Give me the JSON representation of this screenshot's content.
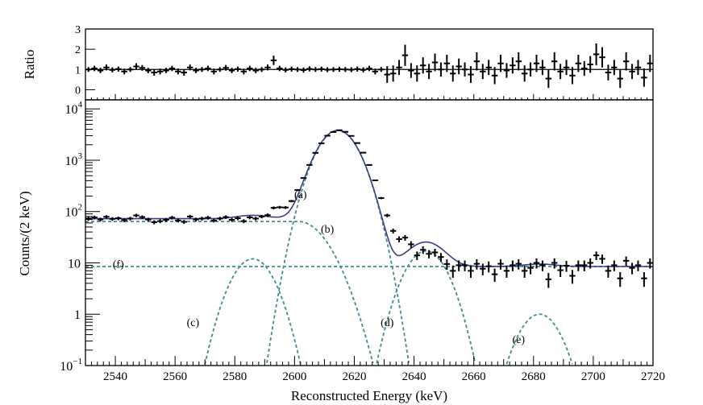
{
  "chart_data": [
    {
      "type": "scatter",
      "panel": "ratio",
      "ylabel": "Ratio",
      "ylim": [
        -0.5,
        3
      ],
      "yticks": [
        "0",
        "1",
        "2",
        "3"
      ],
      "reference_line": 1,
      "x": [
        2531,
        2533,
        2535,
        2537,
        2539,
        2541,
        2543,
        2545,
        2547,
        2549,
        2551,
        2553,
        2555,
        2557,
        2559,
        2561,
        2563,
        2565,
        2567,
        2569,
        2571,
        2573,
        2575,
        2577,
        2579,
        2581,
        2583,
        2585,
        2587,
        2589,
        2591,
        2593,
        2595,
        2597,
        2599,
        2601,
        2603,
        2605,
        2607,
        2609,
        2611,
        2613,
        2615,
        2617,
        2619,
        2621,
        2623,
        2625,
        2627,
        2629,
        2631,
        2633,
        2635,
        2637,
        2639,
        2641,
        2643,
        2645,
        2647,
        2649,
        2651,
        2653,
        2655,
        2657,
        2659,
        2661,
        2663,
        2665,
        2667,
        2669,
        2671,
        2673,
        2675,
        2677,
        2679,
        2681,
        2683,
        2685,
        2687,
        2689,
        2691,
        2693,
        2695,
        2697,
        2699,
        2701,
        2703,
        2705,
        2707,
        2709,
        2711,
        2713,
        2715,
        2717,
        2719
      ],
      "y": [
        1.0,
        1.05,
        0.95,
        1.1,
        0.98,
        1.02,
        0.9,
        1.0,
        1.15,
        1.08,
        0.95,
        0.85,
        0.9,
        0.95,
        1.05,
        0.9,
        0.85,
        1.1,
        0.95,
        1.0,
        1.05,
        0.9,
        1.0,
        1.08,
        0.95,
        1.02,
        0.9,
        1.05,
        0.95,
        1.0,
        1.1,
        1.45,
        1.05,
        0.98,
        1.02,
        1.0,
        0.97,
        1.03,
        1.0,
        1.02,
        0.99,
        1.0,
        1.01,
        1.0,
        0.99,
        1.02,
        0.98,
        1.05,
        0.9,
        1.0,
        0.75,
        0.8,
        1.1,
        1.7,
        0.95,
        0.8,
        1.2,
        0.9,
        1.35,
        1.0,
        1.3,
        0.8,
        1.15,
        1.0,
        0.75,
        1.4,
        0.9,
        1.1,
        0.7,
        1.3,
        0.95,
        1.2,
        1.4,
        0.8,
        1.0,
        1.3,
        1.1,
        0.55,
        1.4,
        0.9,
        1.1,
        0.7,
        1.3,
        1.05,
        1.25,
        1.75,
        1.6,
        0.85,
        1.1,
        0.55,
        1.4,
        0.9,
        1.1,
        0.6,
        1.3
      ]
    },
    {
      "type": "scatter",
      "panel": "main",
      "xlabel": "Reconstructed Energy (keV)",
      "ylabel": "Counts/(2 keV)",
      "xlim": [
        2530,
        2720
      ],
      "ylim": [
        0.1,
        15000
      ],
      "yscale": "log",
      "xticks": [
        "2540",
        "2560",
        "2580",
        "2600",
        "2620",
        "2640",
        "2660",
        "2680",
        "2700",
        "2720"
      ],
      "yticks": [
        {
          "value": 0.1,
          "base": "10",
          "exp": "−1"
        },
        {
          "value": 1,
          "text": "1"
        },
        {
          "value": 10,
          "text": "10"
        },
        {
          "value": 100,
          "base": "10",
          "exp": "2"
        },
        {
          "value": 1000,
          "base": "10",
          "exp": "3"
        },
        {
          "value": 10000,
          "base": "10",
          "exp": "4"
        }
      ],
      "x": [
        2531,
        2533,
        2535,
        2537,
        2539,
        2541,
        2543,
        2545,
        2547,
        2549,
        2551,
        2553,
        2555,
        2557,
        2559,
        2561,
        2563,
        2565,
        2567,
        2569,
        2571,
        2573,
        2575,
        2577,
        2579,
        2581,
        2583,
        2585,
        2587,
        2589,
        2591,
        2593,
        2595,
        2597,
        2599,
        2601,
        2603,
        2605,
        2607,
        2609,
        2611,
        2613,
        2615,
        2617,
        2619,
        2621,
        2623,
        2625,
        2627,
        2629,
        2631,
        2633,
        2635,
        2637,
        2639,
        2641,
        2643,
        2645,
        2647,
        2649,
        2651,
        2653,
        2655,
        2657,
        2659,
        2661,
        2663,
        2665,
        2667,
        2669,
        2671,
        2673,
        2675,
        2677,
        2679,
        2681,
        2683,
        2685,
        2687,
        2689,
        2691,
        2693,
        2695,
        2697,
        2699,
        2701,
        2703,
        2705,
        2707,
        2709,
        2711,
        2713,
        2715,
        2717,
        2719
      ],
      "y": [
        73,
        77,
        70,
        79,
        72,
        74,
        68,
        73,
        84,
        78,
        70,
        62,
        65,
        69,
        76,
        67,
        63,
        80,
        70,
        73,
        76,
        67,
        73,
        78,
        69,
        74,
        65,
        77,
        73,
        80,
        85,
        118,
        121,
        120,
        160,
        262,
        450,
        808,
        1392,
        2135,
        3000,
        3540,
        3840,
        3570,
        2970,
        2160,
        1403,
        808,
        406,
        183,
        84,
        42,
        29,
        31,
        23,
        14,
        18,
        15,
        16,
        13,
        9.5,
        7,
        9,
        9,
        7,
        9.6,
        7.7,
        8.6,
        6,
        9.6,
        7,
        9,
        9.6,
        7,
        8,
        10,
        9,
        4.8,
        10,
        7.2,
        8.8,
        5.6,
        9,
        9,
        10,
        14,
        12,
        7,
        9,
        5,
        11,
        8,
        9,
        5,
        10
      ],
      "series": [
        {
          "name": "(a)",
          "style": "dashed",
          "color": "#3a8f8f",
          "kind": "gaussian",
          "amplitude": 3800,
          "mean": 2614.5,
          "sigma": 5.2
        },
        {
          "name": "(b)",
          "style": "dashed",
          "color": "#3a8f8f",
          "kind": "smoothed_step",
          "level": 64,
          "center": 2614.5,
          "width": 6.6
        },
        {
          "name": "(c)",
          "style": "dashed",
          "color": "#3a8f8f",
          "kind": "gaussian",
          "amplitude": 12,
          "mean": 2586,
          "sigma": 5.2
        },
        {
          "name": "(d)",
          "style": "dashed",
          "color": "#3a8f8f",
          "kind": "gaussian",
          "amplitude": 17,
          "mean": 2644,
          "sigma": 5.2
        },
        {
          "name": "(e)",
          "style": "dashed",
          "color": "#3a8f8f",
          "kind": "gaussian",
          "amplitude": 1.0,
          "mean": 2682,
          "sigma": 5.2
        },
        {
          "name": "(f)",
          "style": "dashed",
          "color": "#3a8f8f",
          "kind": "constant",
          "level": 8.5
        }
      ],
      "total_fit": {
        "style": "solid",
        "color": "#3c3c8c"
      }
    }
  ]
}
